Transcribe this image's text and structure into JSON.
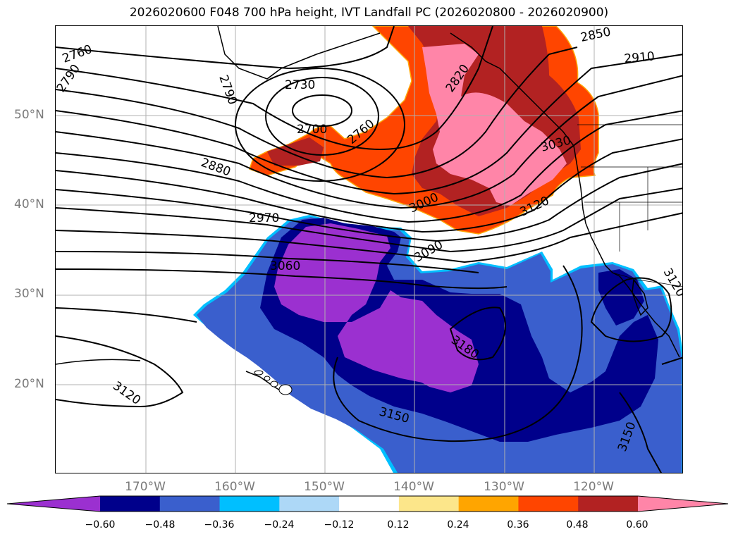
{
  "title": "2026020600 F048 700 hPa height, IVT Landfall PC (2026020800 - 2026020900)",
  "lat_labels": [
    "50°N",
    "40°N",
    "30°N",
    "20°N"
  ],
  "lon_labels": [
    "170°W",
    "160°W",
    "150°W",
    "140°W",
    "130°W",
    "120°W"
  ],
  "contour_labels": [
    "2760",
    "2790",
    "2790",
    "2730",
    "2700",
    "2760",
    "2820",
    "2850",
    "2910",
    "2880",
    "3030",
    "3000",
    "2970",
    "3120",
    "3090",
    "3060",
    "3180",
    "3150",
    "3120",
    "3120",
    "3150"
  ],
  "colorbar": {
    "tick_labels": [
      "−0.60",
      "−0.48",
      "−0.36",
      "−0.24",
      "−0.12",
      "0.12",
      "0.24",
      "0.36",
      "0.48",
      "0.60"
    ],
    "bins": [
      {
        "color": "#9b30d0"
      },
      {
        "color": "#00008b"
      },
      {
        "color": "#3a5fcd"
      },
      {
        "color": "#00bfff"
      },
      {
        "color": "#add8f7"
      },
      {
        "color": "#ffffff"
      },
      {
        "color": "#fce68a"
      },
      {
        "color": "#ffa500"
      },
      {
        "color": "#ff4500"
      },
      {
        "color": "#b22222"
      },
      {
        "color": "#ff85a8"
      }
    ]
  },
  "colors": {
    "positive_high": "#ff85a8",
    "positive_mid": "#b22222",
    "positive_low": "#ff4500",
    "negative_high": "#9b30d0",
    "negative_mid": "#00008b",
    "negative_low": "#3a5fcd",
    "negative_edge": "#00bfff",
    "grid": "#b0b0b0"
  }
}
